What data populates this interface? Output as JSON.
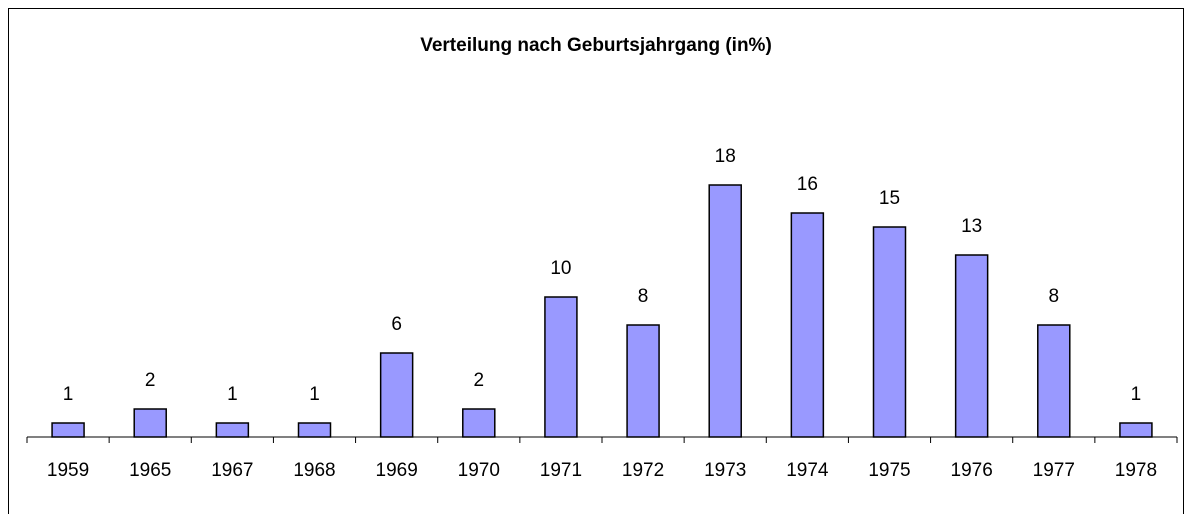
{
  "chart_data": {
    "type": "bar",
    "title": "Verteilung nach Geburtsjahrgang (in%)",
    "categories": [
      "1959",
      "1965",
      "1967",
      "1968",
      "1969",
      "1970",
      "1971",
      "1972",
      "1973",
      "1974",
      "1975",
      "1976",
      "1977",
      "1978"
    ],
    "values": [
      1,
      2,
      1,
      1,
      6,
      2,
      10,
      8,
      18,
      16,
      15,
      13,
      8,
      1
    ],
    "color": "#9999ff"
  }
}
